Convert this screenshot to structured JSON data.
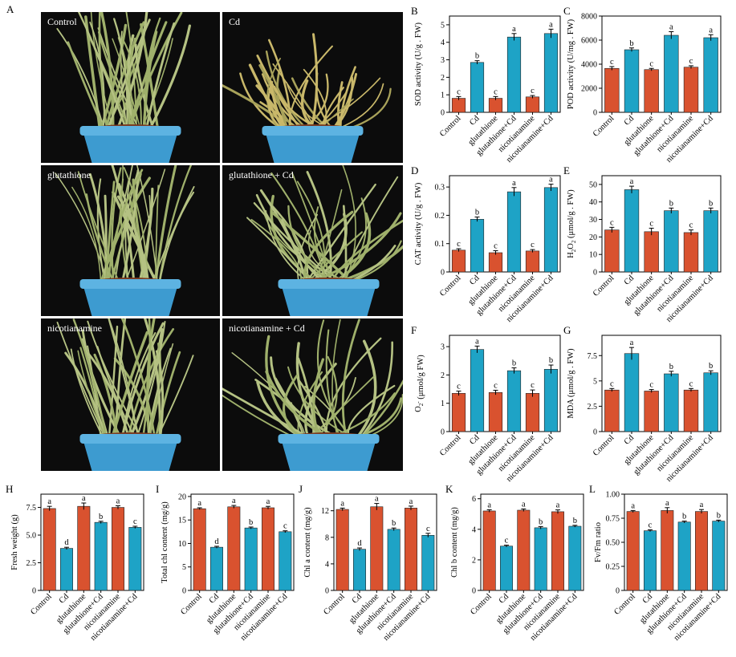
{
  "figure": {
    "panel_letter_A": "A",
    "photos": [
      {
        "label": "Control",
        "condition": "healthy"
      },
      {
        "label": "Cd",
        "condition": "stressed"
      },
      {
        "label": "glutathione",
        "condition": "healthy"
      },
      {
        "label": "glutathione + Cd",
        "condition": "droopy"
      },
      {
        "label": "nicotianamine",
        "condition": "healthy"
      },
      {
        "label": "nicotianamine + Cd",
        "condition": "droopy"
      }
    ],
    "colors": {
      "red": "#d9522f",
      "blue": "#1ea3c6"
    }
  },
  "chart_data": [
    {
      "id": "B",
      "letter": "B",
      "type": "bar",
      "ylabel": "SOD activity (U/g . FW)",
      "categories": [
        "Control",
        "Cd",
        "glutathione",
        "glutathione+Cd",
        "nicotianamine",
        "nicotianamine+Cd"
      ],
      "values": [
        0.8,
        2.85,
        0.8,
        4.3,
        0.88,
        4.5
      ],
      "errors": [
        0.1,
        0.1,
        0.1,
        0.2,
        0.08,
        0.25
      ],
      "letters": [
        "c",
        "b",
        "c",
        "a",
        "c",
        "a"
      ],
      "ylim": [
        0,
        5.5
      ],
      "yticks": [
        0,
        1,
        2,
        3,
        4,
        5
      ],
      "ytick_labels": [
        "0",
        "1",
        "2",
        "3",
        "4",
        "5"
      ]
    },
    {
      "id": "C",
      "letter": "C",
      "type": "bar",
      "ylabel": "POD activity (U/mg . FW)",
      "categories": [
        "Control",
        "Cd",
        "glutathione",
        "glutathione+Cd",
        "nicotianamine",
        "nicotianamine+Cd"
      ],
      "values": [
        3650,
        5200,
        3550,
        6400,
        3750,
        6200
      ],
      "errors": [
        150,
        150,
        100,
        300,
        120,
        250
      ],
      "letters": [
        "c",
        "b",
        "c",
        "a",
        "c",
        "a"
      ],
      "ylim": [
        0,
        8000
      ],
      "yticks": [
        0,
        2000,
        4000,
        6000,
        8000
      ],
      "ytick_labels": [
        "0",
        "2000",
        "4000",
        "6000",
        "8000"
      ]
    },
    {
      "id": "D",
      "letter": "D",
      "type": "bar",
      "ylabel": "CAT activity (U/g . FW)",
      "categories": [
        "Control",
        "Cd",
        "glutathione",
        "glutathione+Cd",
        "nicotianamine",
        "nicotianamine+Cd"
      ],
      "values": [
        0.077,
        0.186,
        0.068,
        0.283,
        0.074,
        0.298
      ],
      "errors": [
        0.005,
        0.008,
        0.007,
        0.015,
        0.005,
        0.012
      ],
      "letters": [
        "c",
        "b",
        "c",
        "a",
        "c",
        "a"
      ],
      "ylim": [
        0,
        0.34
      ],
      "yticks": [
        0,
        0.1,
        0.2,
        0.3
      ],
      "ytick_labels": [
        "0",
        "0.1",
        "0.2",
        "0.3"
      ]
    },
    {
      "id": "E",
      "letter": "E",
      "type": "bar",
      "ylabel": "H2O2 (μmol/g . FW)",
      "ylabel_parts": [
        "H",
        "2",
        "O",
        "2",
        " (μmol/g . FW)"
      ],
      "categories": [
        "Control",
        "Cd",
        "glutathione",
        "glutathione+Cd",
        "nicotianamine",
        "nicotianamine+Cd"
      ],
      "values": [
        24,
        47,
        23,
        35,
        22.5,
        35
      ],
      "errors": [
        1.5,
        2,
        2,
        1.5,
        1.5,
        1.5
      ],
      "letters": [
        "c",
        "a",
        "c",
        "b",
        "c",
        "b"
      ],
      "ylim": [
        0,
        55
      ],
      "yticks": [
        0,
        10,
        20,
        30,
        40,
        50
      ],
      "ytick_labels": [
        "0",
        "10",
        "20",
        "30",
        "40",
        "50"
      ]
    },
    {
      "id": "F",
      "letter": "F",
      "type": "bar",
      "ylabel": "O2- (μmol/g FW)",
      "ylabel_parts": [
        "O",
        "2",
        "-",
        " (μmol/g FW)"
      ],
      "categories": [
        "Control",
        "Cd",
        "glutathione",
        "glutathione+Cd",
        "nicotianamine",
        "nicotianamine+Cd"
      ],
      "values": [
        1.35,
        2.9,
        1.38,
        2.15,
        1.35,
        2.2
      ],
      "errors": [
        0.08,
        0.12,
        0.08,
        0.1,
        0.12,
        0.15
      ],
      "letters": [
        "c",
        "a",
        "c",
        "b",
        "c",
        "b"
      ],
      "ylim": [
        0,
        3.4
      ],
      "yticks": [
        0,
        1,
        2,
        3
      ],
      "ytick_labels": [
        "0",
        "1",
        "2",
        "3"
      ]
    },
    {
      "id": "G",
      "letter": "G",
      "type": "bar",
      "ylabel": "MDA (μmol/g . FW)",
      "categories": [
        "Control",
        "Cd",
        "glutathione",
        "glutathione+Cd",
        "nicotianamine",
        "nicotianamine+Cd"
      ],
      "values": [
        4.1,
        7.7,
        4.0,
        5.7,
        4.1,
        5.8
      ],
      "errors": [
        0.15,
        0.6,
        0.15,
        0.25,
        0.15,
        0.2
      ],
      "letters": [
        "c",
        "a",
        "c",
        "b",
        "c",
        "b"
      ],
      "ylim": [
        0,
        9.5
      ],
      "yticks": [
        0,
        2.5,
        5,
        7.5
      ],
      "ytick_labels": [
        "0",
        "2.5",
        "5",
        "7.5"
      ]
    },
    {
      "id": "H",
      "letter": "H",
      "type": "bar",
      "ylabel": "Fresh weight (g)",
      "categories": [
        "Control",
        "Cd",
        "glutathione",
        "glutathione+Cd",
        "nicotianamine",
        "nicotianamine+Cd"
      ],
      "values": [
        7.4,
        3.8,
        7.6,
        6.15,
        7.5,
        5.7
      ],
      "errors": [
        0.2,
        0.1,
        0.3,
        0.1,
        0.15,
        0.1
      ],
      "letters": [
        "a",
        "d",
        "a",
        "b",
        "a",
        "c"
      ],
      "ylim": [
        0,
        8.7
      ],
      "yticks": [
        0,
        2.5,
        5,
        7.5
      ],
      "ytick_labels": [
        "0",
        "2.5",
        "5.0",
        "7.5"
      ]
    },
    {
      "id": "I",
      "letter": "I",
      "type": "bar",
      "ylabel": "Total chl content (mg/g)",
      "categories": [
        "Control",
        "Cd",
        "glutathione",
        "glutathione+Cd",
        "nicotianamine",
        "nicotianamine+Cd"
      ],
      "values": [
        17.4,
        9.2,
        17.8,
        13.3,
        17.6,
        12.5
      ],
      "errors": [
        0.2,
        0.2,
        0.3,
        0.2,
        0.3,
        0.2
      ],
      "letters": [
        "a",
        "d",
        "a",
        "b",
        "a",
        "c"
      ],
      "ylim": [
        0,
        20.5
      ],
      "yticks": [
        0,
        5,
        10,
        15,
        20
      ],
      "ytick_labels": [
        "0",
        "5",
        "10",
        "15",
        "20"
      ]
    },
    {
      "id": "J",
      "letter": "J",
      "type": "bar",
      "ylabel": "Chl a content (mg/g)",
      "categories": [
        "Control",
        "Cd",
        "glutathione",
        "glutathione+Cd",
        "nicotianamine",
        "nicotianamine+Cd"
      ],
      "values": [
        12.2,
        6.2,
        12.6,
        9.2,
        12.4,
        8.3
      ],
      "errors": [
        0.2,
        0.2,
        0.5,
        0.2,
        0.3,
        0.3
      ],
      "letters": [
        "a",
        "d",
        "a",
        "b",
        "a",
        "c"
      ],
      "ylim": [
        0,
        14.5
      ],
      "yticks": [
        0,
        4,
        8,
        12
      ],
      "ytick_labels": [
        "0",
        "4",
        "8",
        "12"
      ]
    },
    {
      "id": "K",
      "letter": "K",
      "type": "bar",
      "ylabel": "Chl b content (mg/g)",
      "categories": [
        "Control",
        "Cd",
        "glutathione",
        "glutathione+Cd",
        "nicotianamine",
        "nicotianamine+Cd"
      ],
      "values": [
        5.2,
        2.9,
        5.25,
        4.1,
        5.15,
        4.2
      ],
      "errors": [
        0.08,
        0.06,
        0.08,
        0.08,
        0.12,
        0.06
      ],
      "letters": [
        "a",
        "c",
        "a",
        "b",
        "a",
        "b"
      ],
      "ylim": [
        0,
        6.3
      ],
      "yticks": [
        0,
        2,
        4,
        6
      ],
      "ytick_labels": [
        "0",
        "2",
        "4",
        "6"
      ]
    },
    {
      "id": "L",
      "letter": "L",
      "type": "bar",
      "ylabel": "Fv/Fm ratio",
      "categories": [
        "Control",
        "Cd",
        "glutathione",
        "glutathione+Cd",
        "nicotianamine",
        "nicotianamine+Cd"
      ],
      "values": [
        0.82,
        0.62,
        0.83,
        0.71,
        0.82,
        0.72
      ],
      "errors": [
        0.01,
        0.01,
        0.03,
        0.01,
        0.02,
        0.01
      ],
      "letters": [
        "a",
        "c",
        "a",
        "b",
        "a",
        "b"
      ],
      "ylim": [
        0,
        1.0
      ],
      "yticks": [
        0,
        0.25,
        0.5,
        0.75,
        1.0
      ],
      "ytick_labels": [
        "0",
        "0.25",
        "0.50",
        "0.75",
        "1.00"
      ]
    }
  ]
}
